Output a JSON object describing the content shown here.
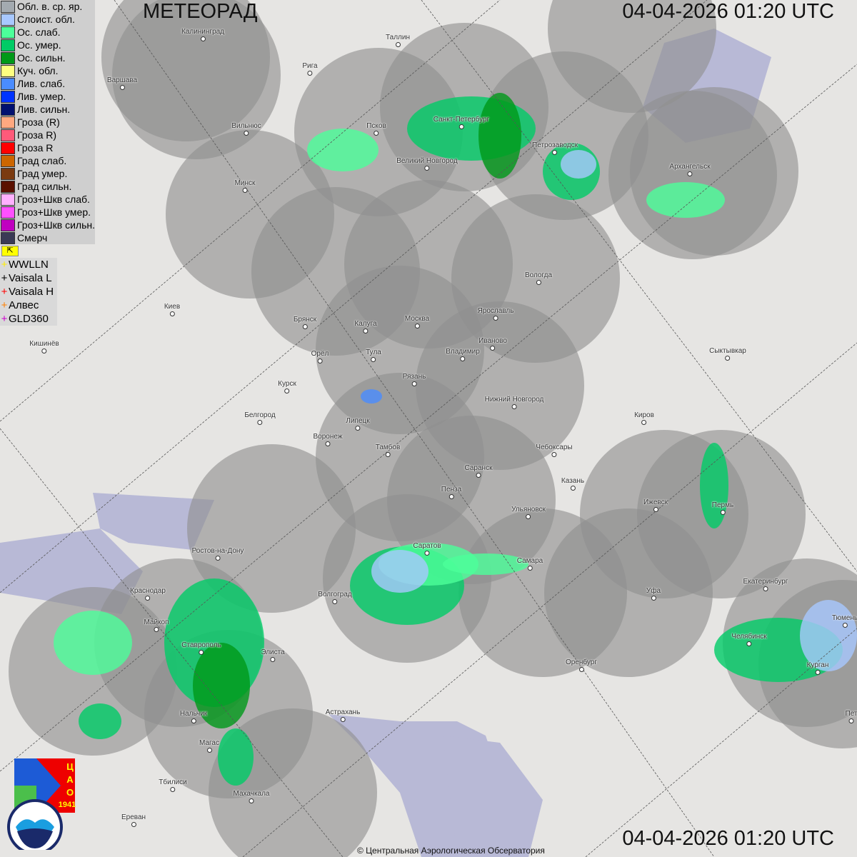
{
  "header": {
    "title": "МЕТЕОРАД",
    "timestamp": "04-04-2026  01:20 UTC"
  },
  "footer": {
    "timestamp": "04-04-2026  01:20 UTC",
    "copyright": "© Центральная Аэрологическая Обсерватория"
  },
  "legend": [
    {
      "label": "Обл. в. ср. яр.",
      "color": "#a3aab0"
    },
    {
      "label": "Слоист. обл.",
      "color": "#a8c8ff"
    },
    {
      "label": "Ос. слаб.",
      "color": "#4cff9a"
    },
    {
      "label": "Ос. умер.",
      "color": "#00cc66"
    },
    {
      "label": "Ос. сильн.",
      "color": "#009919"
    },
    {
      "label": "Куч. обл.",
      "color": "#ffff80"
    },
    {
      "label": "Лив. слаб.",
      "color": "#4a8cff"
    },
    {
      "label": "Лив. умер.",
      "color": "#0033ff"
    },
    {
      "label": "Лив. сильн.",
      "color": "#001070"
    },
    {
      "label": "Гроза (R)",
      "color": "#ffa880"
    },
    {
      "label": "Гроза R)",
      "color": "#ff5a7a"
    },
    {
      "label": "Гроза R",
      "color": "#ff0000"
    },
    {
      "label": "Град слаб.",
      "color": "#cc6600"
    },
    {
      "label": "Град умер.",
      "color": "#7a3a10"
    },
    {
      "label": "Град сильн.",
      "color": "#5a1000"
    },
    {
      "label": "Гроз+Шкв слаб.",
      "color": "#ffb0ff"
    },
    {
      "label": "Гроз+Шкв умер.",
      "color": "#ff50ff"
    },
    {
      "label": "Гроз+Шкв сильн.",
      "color": "#c000c0"
    },
    {
      "label": "Смерч",
      "color": "#3a3a55"
    }
  ],
  "lightning": [
    {
      "label": "WWLLN",
      "color": "#ffee00"
    },
    {
      "label": "Vaisala L",
      "color": "#000000"
    },
    {
      "label": "Vaisala H",
      "color": "#ff0000"
    },
    {
      "label": "Алвес",
      "color": "#ff8000"
    },
    {
      "label": "GLD360",
      "color": "#cc00cc"
    }
  ],
  "cities": [
    "Калининград",
    "Таллин",
    "Рига",
    "Варшава",
    "Вильнюс",
    "Псков",
    "Санкт-Петербург",
    "Петрозаводск",
    "Великий Новгород",
    "Архангельск",
    "Минск",
    "Вологда",
    "Киев",
    "Брянск",
    "Калуга",
    "Москва",
    "Ярославль",
    "Иваново",
    "Кишинёв",
    "Орёл",
    "Тула",
    "Владимир",
    "Сыктывкар",
    "Рязань",
    "Курск",
    "Нижний Новгород",
    "Белгород",
    "Киров",
    "Липецк",
    "Воронеж",
    "Тамбов",
    "Чебоксары",
    "Саранск",
    "Пенза",
    "Казань",
    "Ижевск",
    "Ульяновск",
    "Пермь",
    "Ростов-на-Дону",
    "Саратов",
    "Самара",
    "Краснодар",
    "Уфа",
    "Екатеринбург",
    "Волгоград",
    "Майкоп",
    "Ставрополь",
    "Челябинск",
    "Элиста",
    "Оренбург",
    "Курган",
    "Тюмень",
    "Нальчик",
    "Астрахань",
    "Магас",
    "Махачкала",
    "Тбилиси",
    "Ереван",
    "Пет"
  ],
  "logos": {
    "cao": "ЦАО 1941",
    "roshydromet": "РОСГИДРОМЕТ ROSHYDROMET"
  }
}
